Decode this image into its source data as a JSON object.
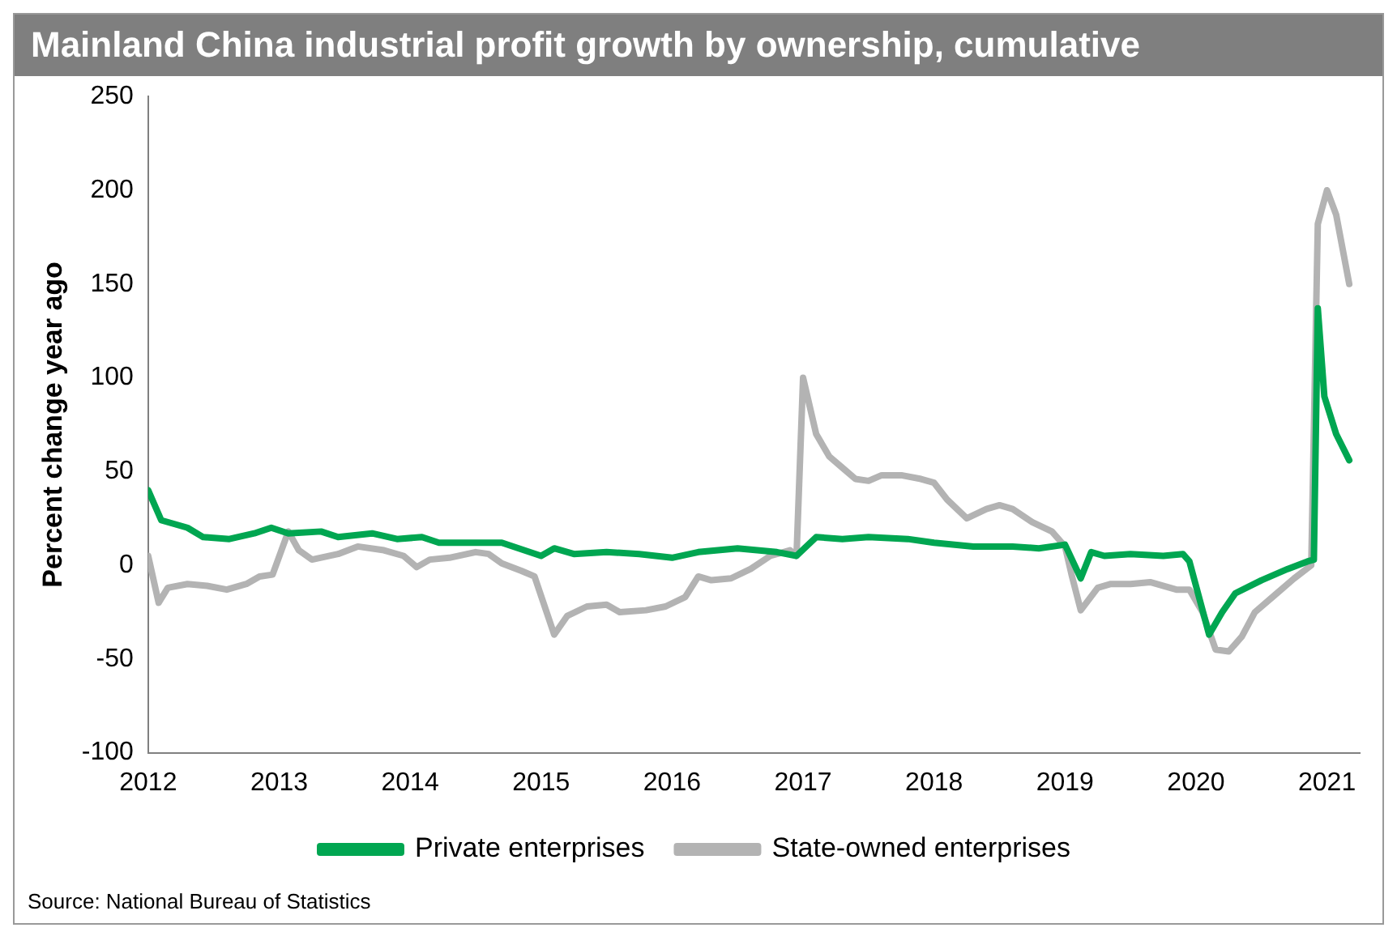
{
  "chart_data": {
    "type": "line",
    "title": "Mainland China industrial profit growth by ownership, cumulative",
    "ylabel": "Percent change year ago",
    "annotations": [
      "Source: National Bureau of Statistics"
    ],
    "xlim": [
      2012,
      2021.25
    ],
    "xticks": [
      2012,
      2013,
      2014,
      2015,
      2016,
      2017,
      2018,
      2019,
      2020,
      2021
    ],
    "ylim": [
      -100,
      250
    ],
    "yticks": [
      -100,
      -50,
      0,
      50,
      100,
      150,
      200,
      250
    ],
    "grid": false,
    "legend": "bottom",
    "marker": "none",
    "line_style": "solid",
    "series": [
      {
        "name": "Private enterprises",
        "color": "#00a651",
        "x": [
          2012,
          2012.1,
          2012.3,
          2012.42,
          2012.62,
          2012.81,
          2012.94,
          2013.07,
          2013.32,
          2013.45,
          2013.71,
          2013.9,
          2014.09,
          2014.22,
          2014.48,
          2014.7,
          2015,
          2015.1,
          2015.25,
          2015.5,
          2015.75,
          2016,
          2016.2,
          2016.5,
          2016.8,
          2016.95,
          2017.1,
          2017.3,
          2017.5,
          2017.8,
          2018,
          2018.3,
          2018.6,
          2018.8,
          2019,
          2019.12,
          2019.2,
          2019.3,
          2019.5,
          2019.75,
          2019.9,
          2019.95,
          2020.1,
          2020.2,
          2020.3,
          2020.5,
          2020.7,
          2020.85,
          2020.9,
          2020.93,
          2020.98,
          2021.07,
          2021.17
        ],
        "values": [
          40,
          24,
          20,
          15,
          14,
          17,
          20,
          17,
          18,
          15,
          17,
          14,
          15,
          12,
          12,
          12,
          5,
          9,
          6,
          7,
          6,
          4,
          7,
          9,
          7,
          5,
          15,
          14,
          15,
          14,
          12,
          10,
          10,
          9,
          11,
          -7,
          7,
          5,
          6,
          5,
          6,
          2,
          -37,
          -25,
          -15,
          -8,
          -2,
          2,
          3,
          137,
          90,
          70,
          56
        ]
      },
      {
        "name": "State-owned enterprises",
        "color": "#b3b3b3",
        "x": [
          2012,
          2012.08,
          2012.15,
          2012.3,
          2012.45,
          2012.6,
          2012.75,
          2012.85,
          2012.95,
          2013.07,
          2013.15,
          2013.25,
          2013.45,
          2013.6,
          2013.8,
          2013.95,
          2014.05,
          2014.15,
          2014.3,
          2014.5,
          2014.6,
          2014.7,
          2014.85,
          2014.95,
          2015.1,
          2015.2,
          2015.35,
          2015.5,
          2015.6,
          2015.8,
          2015.95,
          2016.1,
          2016.2,
          2016.3,
          2016.45,
          2016.6,
          2016.75,
          2016.9,
          2016.95,
          2017,
          2017.1,
          2017.2,
          2017.3,
          2017.4,
          2017.5,
          2017.6,
          2017.75,
          2017.9,
          2018,
          2018.1,
          2018.25,
          2018.4,
          2018.5,
          2018.6,
          2018.75,
          2018.9,
          2019,
          2019.05,
          2019.12,
          2019.25,
          2019.35,
          2019.5,
          2019.65,
          2019.85,
          2019.95,
          2020.05,
          2020.15,
          2020.25,
          2020.35,
          2020.45,
          2020.6,
          2020.75,
          2020.88,
          2020.93,
          2021,
          2021.07,
          2021.17
        ],
        "values": [
          5,
          -20,
          -12,
          -10,
          -11,
          -13,
          -10,
          -6,
          -5,
          18,
          8,
          3,
          6,
          10,
          8,
          5,
          -1,
          3,
          4,
          7,
          6,
          1,
          -3,
          -6,
          -37,
          -27,
          -22,
          -21,
          -25,
          -24,
          -22,
          -17,
          -6,
          -8,
          -7,
          -2,
          5,
          8,
          5,
          100,
          70,
          58,
          52,
          46,
          45,
          48,
          48,
          46,
          44,
          35,
          25,
          30,
          32,
          30,
          23,
          18,
          10,
          -5,
          -24,
          -12,
          -10,
          -10,
          -9,
          -13,
          -13,
          -25,
          -45,
          -46,
          -38,
          -25,
          -16,
          -7,
          0,
          182,
          200,
          187,
          150
        ]
      }
    ]
  }
}
